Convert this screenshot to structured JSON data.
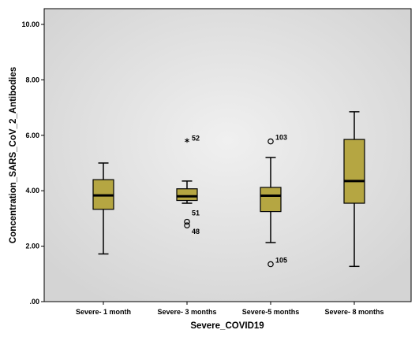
{
  "chart_data": {
    "type": "boxplot",
    "xlabel": "Severe_COVID19",
    "ylabel": "Concentration_SARS_CoV_2_Antibodies",
    "ylim": [
      0,
      10.5
    ],
    "yticks": [
      0,
      2,
      4,
      6,
      8,
      10
    ],
    "ytick_labels": [
      ".00",
      "2.00",
      "4.00",
      "6.00",
      "8.00",
      "10.00"
    ],
    "categories": [
      "Severe- 1 month",
      "Severe- 3 months",
      "Severe-5 months",
      "Severe- 8 months"
    ],
    "boxes": [
      {
        "category": "Severe- 1 month",
        "min": 1.72,
        "q1": 3.33,
        "median": 3.83,
        "q3": 4.4,
        "max": 5.0,
        "outliers": []
      },
      {
        "category": "Severe- 3 months",
        "min": 3.55,
        "q1": 3.65,
        "median": 3.8,
        "q3": 4.07,
        "max": 4.35,
        "outliers": [
          {
            "value": 5.75,
            "label": "52",
            "marker": "star"
          },
          {
            "value": 2.88,
            "label": "51",
            "marker": "circle"
          },
          {
            "value": 2.75,
            "label": "48",
            "marker": "circle"
          }
        ]
      },
      {
        "category": "Severe-5 months",
        "min": 2.13,
        "q1": 3.25,
        "median": 3.82,
        "q3": 4.12,
        "max": 5.2,
        "outliers": [
          {
            "value": 5.78,
            "label": "103",
            "marker": "circle"
          },
          {
            "value": 1.35,
            "label": "105",
            "marker": "circle"
          }
        ]
      },
      {
        "category": "Severe- 8 months",
        "min": 1.27,
        "q1": 3.55,
        "median": 4.35,
        "q3": 5.85,
        "max": 6.85,
        "outliers": []
      }
    ],
    "colors": {
      "box_fill": "#b5a642",
      "plot_bg_outer": "#d4d4d4",
      "plot_bg_inner": "#f0f0f0",
      "axis": "#000000"
    },
    "grid": false,
    "legend": "none"
  }
}
